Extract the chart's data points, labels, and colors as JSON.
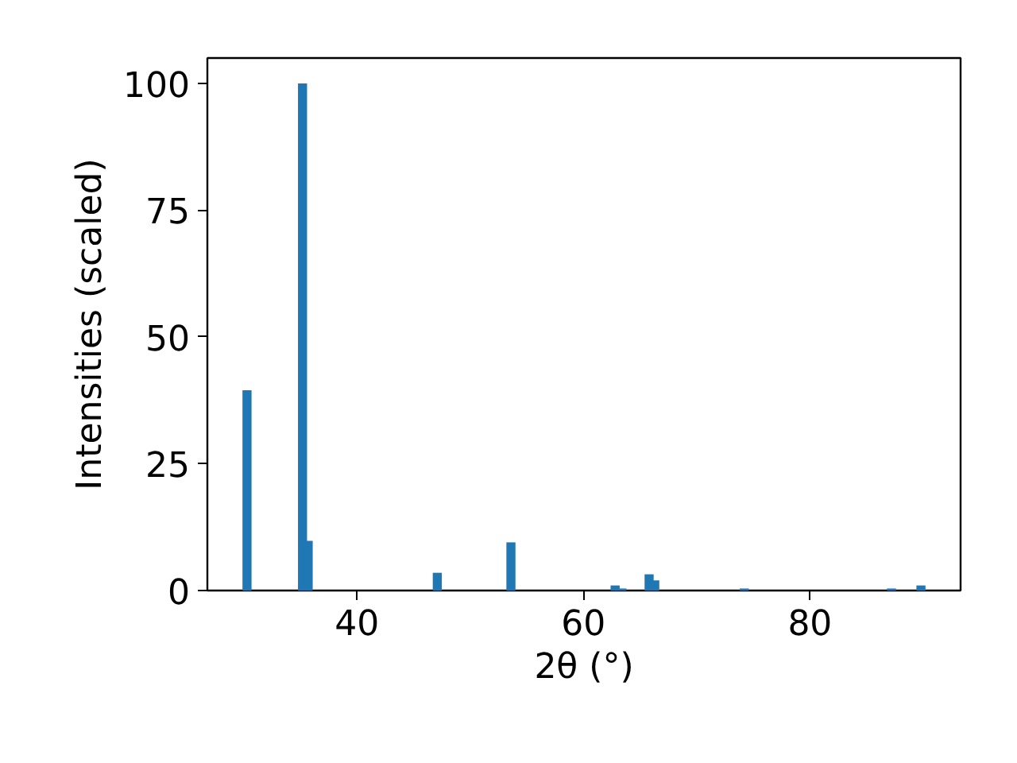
{
  "chart_data": {
    "type": "bar",
    "xlabel": "2θ (°)",
    "ylabel": "Intensities (scaled)",
    "x": [
      30.3,
      35.2,
      35.7,
      47.1,
      53.6,
      62.8,
      63.4,
      65.8,
      66.3,
      74.2,
      87.2,
      89.8
    ],
    "values": [
      39.5,
      100,
      9.8,
      3.5,
      9.5,
      1.0,
      0.4,
      3.2,
      2.0,
      0.4,
      0.4,
      1.0
    ],
    "color": "#1f77b4",
    "xlim": [
      26.8,
      93.3
    ],
    "xticks": [
      40,
      60,
      80
    ],
    "ylim": [
      0,
      105
    ],
    "yticks": [
      0,
      25,
      50,
      75,
      100
    ],
    "grid": false
  }
}
